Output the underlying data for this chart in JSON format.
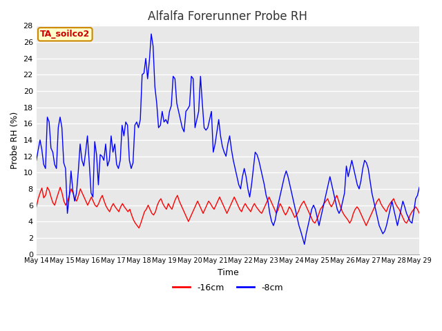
{
  "title": "Alfalfa Forerunner Probe RH",
  "xlabel": "Time",
  "ylabel": "Probe RH (%)",
  "ylim": [
    0,
    28
  ],
  "yticks": [
    0,
    2,
    4,
    6,
    8,
    10,
    12,
    14,
    16,
    18,
    20,
    22,
    24,
    26,
    28
  ],
  "legend_labels": [
    "-16cm",
    "-8cm"
  ],
  "legend_colors": [
    "red",
    "blue"
  ],
  "annotation_text": "TA_soilco2",
  "annotation_bg": "#ffffcc",
  "annotation_border": "#cc8800",
  "annotation_text_color": "#cc0000",
  "fig_bg_color": "#ffffff",
  "plot_bg_color": "#e8e8e8",
  "grid_color": "white",
  "xtick_labels": [
    "May 14",
    "May 15",
    "May 16",
    "May 17",
    "May 18",
    "May 19",
    "May 20",
    "May 21",
    "May 22",
    "May 23",
    "May 24",
    "May 25",
    "May 26",
    "May 27",
    "May 28",
    "May 29"
  ],
  "red_data": [
    5.8,
    6.8,
    7.5,
    8.1,
    6.9,
    7.2,
    8.2,
    7.8,
    7.0,
    6.3,
    6.0,
    6.8,
    7.5,
    8.2,
    7.5,
    6.5,
    6.0,
    6.5,
    7.2,
    8.0,
    7.5,
    6.8,
    6.5,
    7.2,
    8.0,
    7.5,
    7.0,
    6.5,
    6.0,
    6.5,
    7.0,
    6.5,
    6.0,
    5.8,
    6.2,
    6.8,
    7.2,
    6.5,
    5.9,
    5.5,
    5.2,
    5.8,
    6.2,
    5.8,
    5.5,
    5.2,
    5.8,
    6.2,
    5.8,
    5.5,
    5.2,
    5.5,
    4.8,
    4.2,
    3.8,
    3.5,
    3.2,
    3.8,
    4.5,
    5.2,
    5.5,
    6.0,
    5.5,
    5.0,
    4.8,
    5.2,
    6.0,
    6.5,
    6.8,
    6.2,
    5.8,
    5.5,
    6.2,
    5.8,
    5.5,
    6.2,
    6.8,
    7.2,
    6.5,
    6.0,
    5.5,
    5.0,
    4.5,
    4.0,
    4.5,
    5.0,
    5.5,
    6.0,
    6.5,
    6.0,
    5.5,
    5.0,
    5.5,
    6.0,
    6.5,
    6.2,
    5.8,
    5.5,
    6.0,
    6.5,
    7.0,
    6.5,
    6.0,
    5.5,
    5.0,
    5.5,
    6.0,
    6.5,
    7.0,
    6.5,
    6.0,
    5.5,
    5.2,
    5.8,
    6.2,
    5.8,
    5.5,
    5.2,
    5.8,
    6.2,
    5.8,
    5.5,
    5.2,
    5.0,
    5.5,
    6.0,
    6.5,
    7.0,
    6.5,
    6.0,
    5.5,
    5.0,
    5.5,
    6.2,
    5.8,
    5.2,
    4.8,
    5.2,
    5.8,
    5.5,
    5.0,
    4.5,
    4.8,
    5.2,
    5.8,
    6.2,
    6.5,
    6.0,
    5.5,
    5.0,
    4.5,
    4.0,
    3.8,
    4.2,
    4.8,
    5.5,
    5.8,
    6.2,
    6.5,
    6.8,
    6.2,
    5.8,
    6.2,
    6.8,
    7.2,
    6.5,
    5.8,
    5.2,
    4.8,
    4.5,
    4.2,
    3.8,
    4.2,
    5.0,
    5.5,
    5.8,
    5.5,
    5.0,
    4.5,
    4.0,
    3.5,
    4.0,
    4.5,
    5.0,
    5.5,
    6.0,
    6.5,
    6.8,
    6.2,
    5.8,
    5.5,
    5.2,
    5.8,
    6.2,
    6.5,
    6.8,
    6.2,
    5.8,
    5.5,
    5.0,
    4.5,
    4.0,
    3.8,
    4.2,
    4.8,
    5.2,
    5.5,
    5.8,
    5.5,
    5.0
  ],
  "blue_data": [
    11.5,
    12.8,
    14.0,
    12.8,
    11.0,
    10.5,
    16.8,
    16.2,
    13.0,
    12.5,
    11.0,
    10.5,
    15.5,
    16.8,
    15.5,
    11.2,
    10.5,
    5.0,
    7.0,
    10.2,
    7.8,
    6.5,
    7.5,
    10.2,
    13.5,
    11.5,
    10.8,
    12.5,
    14.5,
    11.2,
    7.5,
    7.0,
    13.8,
    12.2,
    8.5,
    12.2,
    12.0,
    11.5,
    13.5,
    10.8,
    11.5,
    14.5,
    12.5,
    13.5,
    11.0,
    10.5,
    11.5,
    15.8,
    14.5,
    16.2,
    15.8,
    11.5,
    10.5,
    11.2,
    15.8,
    16.2,
    15.5,
    16.5,
    22.0,
    22.2,
    24.0,
    21.5,
    23.8,
    27.0,
    25.5,
    20.5,
    18.5,
    15.5,
    15.8,
    17.5,
    16.2,
    16.5,
    16.0,
    17.5,
    18.2,
    21.8,
    21.5,
    18.5,
    17.5,
    16.5,
    15.5,
    15.0,
    17.5,
    17.8,
    18.2,
    21.8,
    21.5,
    15.5,
    16.5,
    17.5,
    21.8,
    18.5,
    15.5,
    15.2,
    15.5,
    16.5,
    17.5,
    12.5,
    13.5,
    15.0,
    16.5,
    14.5,
    13.2,
    12.5,
    12.0,
    13.5,
    14.5,
    12.8,
    11.5,
    10.5,
    9.5,
    8.5,
    8.0,
    9.5,
    10.5,
    9.5,
    8.0,
    7.0,
    8.5,
    10.5,
    12.5,
    12.2,
    11.5,
    10.5,
    9.5,
    8.5,
    7.2,
    6.5,
    5.0,
    4.0,
    3.5,
    4.2,
    5.5,
    6.5,
    7.5,
    8.5,
    9.5,
    10.2,
    9.5,
    8.5,
    7.5,
    6.5,
    5.5,
    4.5,
    3.5,
    2.8,
    2.0,
    1.2,
    2.5,
    3.5,
    4.5,
    5.5,
    6.0,
    5.5,
    4.5,
    3.5,
    4.5,
    5.5,
    6.5,
    7.5,
    8.5,
    9.5,
    8.5,
    7.5,
    6.5,
    5.5,
    5.0,
    5.5,
    6.5,
    7.5,
    10.8,
    9.5,
    10.5,
    11.5,
    10.5,
    9.5,
    8.5,
    8.0,
    9.0,
    10.5,
    11.5,
    11.2,
    10.5,
    9.0,
    7.5,
    6.5,
    5.5,
    4.5,
    3.5,
    3.0,
    2.5,
    2.8,
    3.5,
    4.5,
    5.5,
    6.5,
    5.5,
    4.5,
    3.5,
    4.5,
    5.5,
    6.5,
    5.8,
    5.0,
    4.5,
    4.0,
    3.8,
    5.2,
    6.8,
    7.2,
    8.2
  ]
}
